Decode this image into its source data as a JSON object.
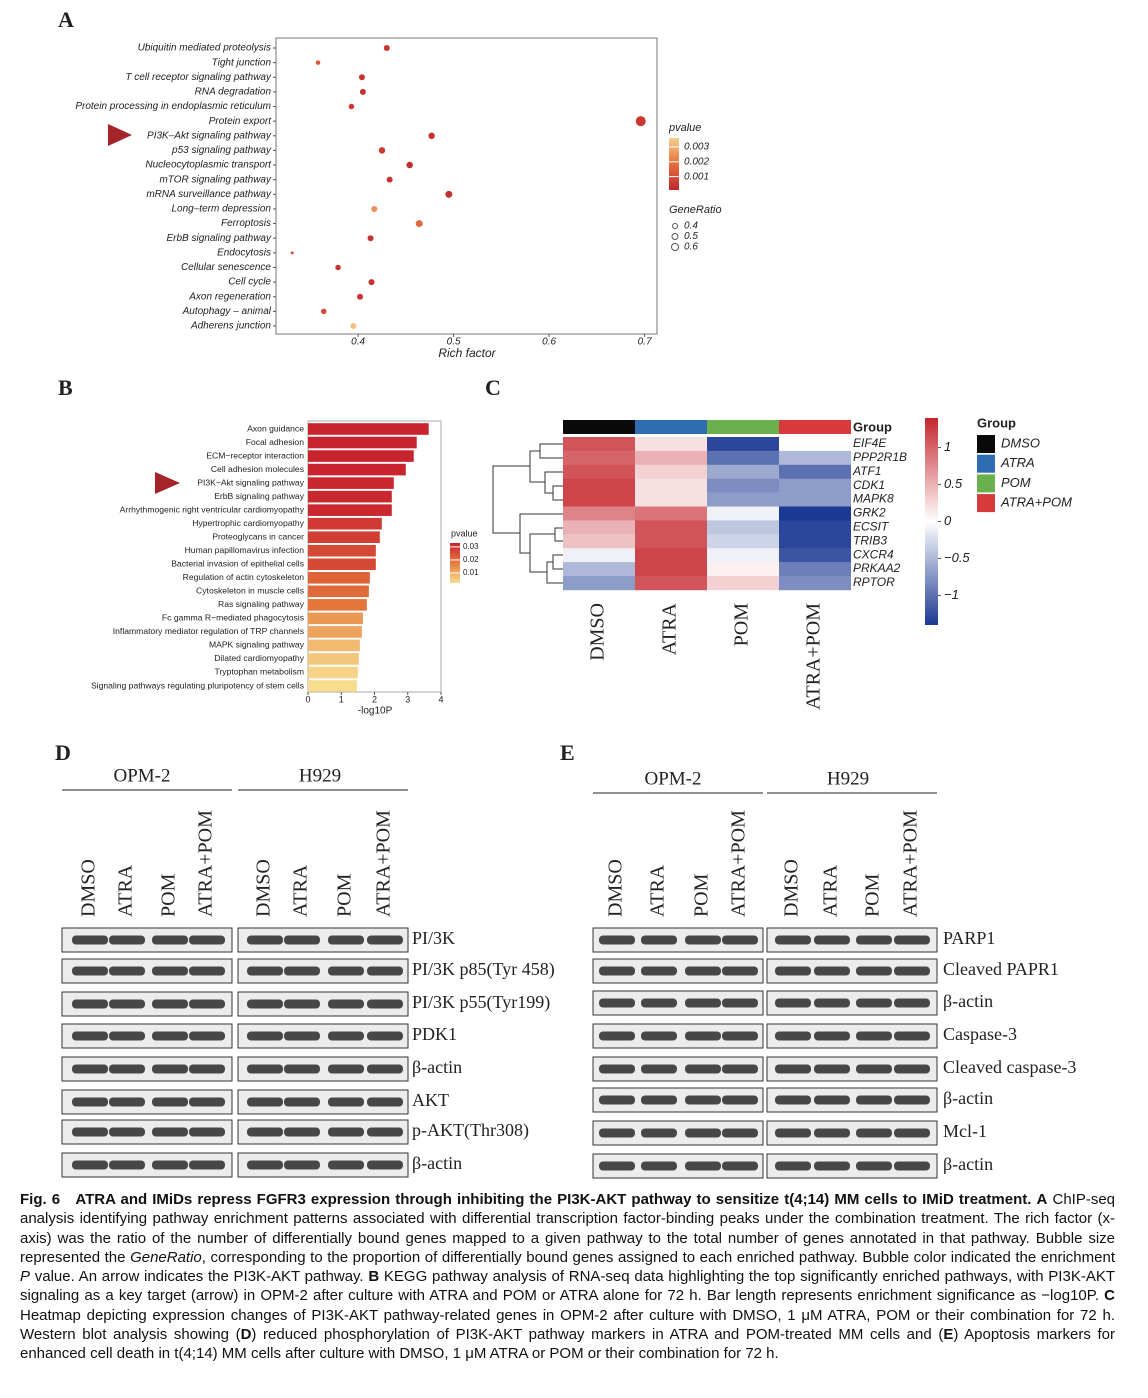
{
  "chart_data": [
    {
      "type": "dot",
      "label": "A",
      "x_label": "Rich factor",
      "categories": [
        "Ubiquitin mediated proteolysis",
        "Tight junction",
        "T cell receptor signaling pathway",
        "RNA degradation",
        "Protein processing in endoplasmic reticulum",
        "Protein export",
        "PI3K–Akt signaling pathway",
        "p53 signaling pathway",
        "Nucleocytoplasmic transport",
        "mTOR signaling pathway",
        "mRNA surveillance pathway",
        "Long–term depression",
        "Ferroptosis",
        "ErbB signaling pathway",
        "Endocytosis",
        "Cellular senescence",
        "Cell cycle",
        "Axon regeneration",
        "Autophagy – animal",
        "Adherens junction"
      ],
      "values": [
        0.43,
        0.358,
        0.404,
        0.405,
        0.393,
        0.696,
        0.477,
        0.425,
        0.454,
        0.433,
        0.495,
        0.417,
        0.464,
        0.413,
        0.331,
        0.379,
        0.414,
        0.402,
        0.364,
        0.395
      ],
      "pvalue": [
        0.0004,
        0.0012,
        0.0004,
        0.0004,
        0.0005,
        0.0005,
        0.0004,
        0.0006,
        0.0003,
        0.0004,
        0.0003,
        0.0024,
        0.0017,
        0.0004,
        0.001,
        0.0004,
        0.0003,
        0.0004,
        0.001,
        0.0033
      ],
      "gene_ratio": [
        0.5,
        0.35,
        0.5,
        0.5,
        0.45,
        0.9,
        0.55,
        0.55,
        0.55,
        0.5,
        0.6,
        0.5,
        0.6,
        0.5,
        0.2,
        0.45,
        0.5,
        0.5,
        0.45,
        0.5
      ],
      "xlim": [
        0.314,
        0.713
      ],
      "xticks": [
        0.4,
        0.5,
        0.6,
        0.7
      ],
      "color_legend": {
        "title": "pvalue",
        "lim": [
          0.0001,
          0.0036
        ],
        "ticks": [
          0.001,
          0.002,
          0.003
        ],
        "colors": [
          "#c1272d",
          "#e2703f",
          "#f7d08c"
        ]
      },
      "size_legend": {
        "title": "GeneRatio",
        "ticks": [
          0.4,
          0.5,
          0.6
        ]
      }
    },
    {
      "type": "hbar",
      "label": "B",
      "x_label": "-log10P",
      "categories": [
        "Axon guidance",
        "Focal adhesion",
        "ECM−receptor interaction",
        "Cell adhesion molecules",
        "PI3K−Akt signaling pathway",
        "ErbB signaling pathway",
        "Arrhythmogenic right ventricular cardiomyopathy",
        "Hypertrophic cardiomyopathy",
        "Proteoglycans in cancer",
        "Human papillomavirus infection",
        "Bacterial invasion of epithelial cells",
        "Regulation of actin cytoskeleton",
        "Cytoskeleton in muscle cells",
        "Ras signaling pathway",
        "Fc gamma R−mediated phagocytosis",
        "Inflammatory mediator regulation of TRP channels",
        "MAPK signaling pathway",
        "Dilated cardiomyopathy",
        "Tryptophan metabolism",
        "Signaling pathways regulating pluripotency of stem cells"
      ],
      "values": [
        3.63,
        3.27,
        3.18,
        2.94,
        2.58,
        2.52,
        2.52,
        2.22,
        2.16,
        2.04,
        2.04,
        1.86,
        1.83,
        1.77,
        1.65,
        1.62,
        1.56,
        1.53,
        1.5,
        1.47
      ],
      "xlim": [
        0,
        4
      ],
      "xticks": [
        0,
        1,
        2,
        3,
        4
      ],
      "color_legend": {
        "title": "pvalue",
        "lim": [
          0.0023,
          0.033
        ],
        "ticks": [
          0.01,
          0.02,
          0.03
        ],
        "colors": [
          "#c8242e",
          "#e67a3c",
          "#f8dc8e"
        ]
      }
    },
    {
      "type": "heatmap",
      "label": "C",
      "group_title": "Group",
      "columns": [
        {
          "name": "DMSO",
          "color": "#0a0a0a"
        },
        {
          "name": "ATRA",
          "color": "#2f6db3"
        },
        {
          "name": "POM",
          "color": "#6ab04c"
        },
        {
          "name": "ATRA+POM",
          "color": "#d63a3a"
        }
      ],
      "rows": [
        "EIF4E",
        "PPP2R1B",
        "ATF1",
        "CDK1",
        "MAPK8",
        "GRK2",
        "ECSIT",
        "TRIB3",
        "CXCR4",
        "PRKAA2",
        "RPTOR"
      ],
      "values": [
        [
          1.1,
          0.2,
          -1.3,
          0.0
        ],
        [
          1.0,
          0.5,
          -1.0,
          -0.5
        ],
        [
          1.1,
          0.3,
          -0.6,
          -1.0
        ],
        [
          1.2,
          0.2,
          -0.8,
          -0.7
        ],
        [
          1.2,
          0.2,
          -0.7,
          -0.7
        ],
        [
          0.8,
          0.9,
          -0.1,
          -1.5
        ],
        [
          0.5,
          1.1,
          -0.4,
          -1.3
        ],
        [
          0.4,
          1.1,
          -0.3,
          -1.3
        ],
        [
          -0.1,
          1.2,
          -0.1,
          -1.2
        ],
        [
          -0.5,
          1.2,
          0.1,
          -0.9
        ],
        [
          -0.7,
          1.1,
          0.3,
          -0.8
        ]
      ],
      "clim": [
        -1.4,
        1.4
      ],
      "cticks": [
        1,
        0.5,
        0,
        {
          "value": -0.5,
          "label": "−0.5"
        },
        {
          "value": -1,
          "label": "−1"
        }
      ],
      "colors": [
        "#1b3892",
        "#ffffff",
        "#c5262d"
      ]
    }
  ],
  "blots": [
    {
      "label": "D",
      "cell_lines": [
        "OPM-2",
        "H929"
      ],
      "lanes": [
        "DMSO",
        "ATRA",
        "POM",
        "ATRA+POM"
      ],
      "bands": [
        "PI/3K",
        "PI/3K p85(Tyr 458)",
        "PI/3K p55(Tyr199)",
        "PDK1",
        "β-actin",
        "AKT",
        "p-AKT(Thr308)",
        "β-actin"
      ]
    },
    {
      "label": "E",
      "cell_lines": [
        "OPM-2",
        "H929"
      ],
      "lanes": [
        "DMSO",
        "ATRA",
        "POM",
        "ATRA+POM"
      ],
      "bands": [
        "PARP1",
        "Cleaved PAPR1",
        "β-actin",
        "Caspase-3",
        "Cleaved caspase-3",
        "β-actin",
        "Mcl-1",
        "β-actin"
      ]
    }
  ],
  "caption": [
    "Fig. 6",
    "ATRA and IMiDs repress FGFR3 expression through inhibiting the PI3K-AKT pathway to sensitize t(4;14) MM cells to IMiD treatment.",
    "A",
    "ChIP-seq analysis identifying pathway enrichment patterns associated with differential transcription factor-binding peaks under the combination treatment. The rich factor (x-axis) was the ratio of the number of differentially bound genes mapped to a given pathway to the total number of genes annotated in that pathway. Bubble size represented the",
    "GeneRatio",
    ", corresponding to the proportion of differentially bound genes assigned to each enriched pathway. Bubble color indicated the enrichment",
    "P",
    "value. An arrow indicates the PI3K-AKT pathway.",
    "B",
    "KEGG pathway analysis of RNA-seq data highlighting the top significantly enriched pathways, with PI3K-AKT signaling as a key target (arrow) in OPM-2 after culture with ATRA and POM or ATRA alone for 72 h. Bar length represents enrichment significance as −log10P.",
    "C",
    "Heatmap depicting expression changes of PI3K-AKT pathway-related genes in OPM-2 after culture with DMSO, 1 μM ATRA, POM or their combination for 72 h. Western blot analysis showing (",
    "D",
    ") reduced phosphorylation of PI3K-AKT pathway markers in ATRA and POM-treated MM cells and (",
    "E",
    ") Apoptosis markers for enhanced cell death in t(4;14) MM cells after culture with DMSO, 1 μM ATRA or POM or their combination for 72 h."
  ]
}
